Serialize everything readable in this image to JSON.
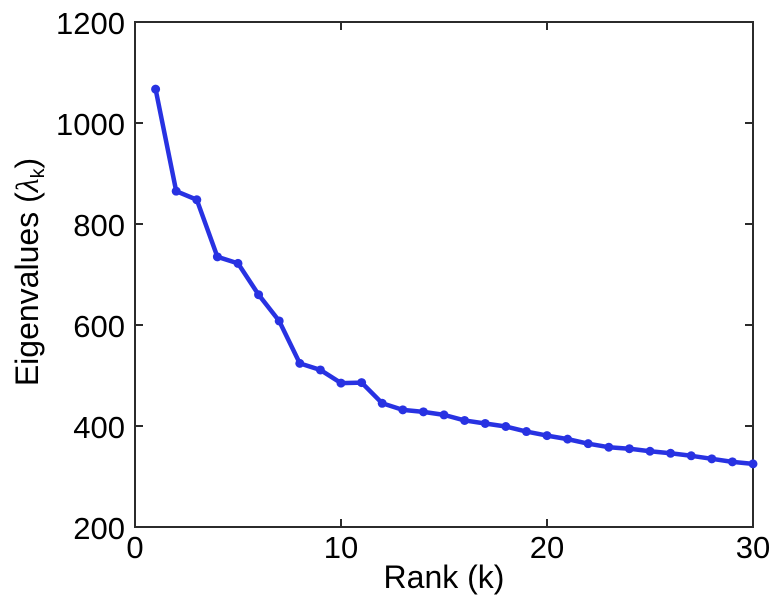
{
  "chart_data": {
    "type": "line",
    "title": "",
    "xlabel": "Rank (k)",
    "ylabel": "Eigenvalues (λk)",
    "ylabel_parts": {
      "prefix": "Eigenvalues (",
      "lambda": "λ",
      "sub": "k",
      "suffix": ")"
    },
    "x": [
      1,
      2,
      3,
      4,
      5,
      6,
      7,
      8,
      9,
      10,
      11,
      12,
      13,
      14,
      15,
      16,
      17,
      18,
      19,
      20,
      21,
      22,
      23,
      24,
      25,
      26,
      27,
      28,
      29,
      30
    ],
    "series": [
      {
        "name": "eigenvalues",
        "values": [
          1067,
          865,
          848,
          735,
          722,
          660,
          608,
          524,
          511,
          485,
          486,
          445,
          432,
          428,
          422,
          411,
          405,
          399,
          389,
          381,
          374,
          365,
          358,
          355,
          350,
          346,
          341,
          335,
          329,
          325
        ]
      }
    ],
    "xlim": [
      0,
      30
    ],
    "ylim": [
      200,
      1200
    ],
    "xticks": [
      0,
      10,
      20,
      30
    ],
    "yticks": [
      200,
      400,
      600,
      800,
      1000,
      1200
    ],
    "grid": false,
    "legend_position": "none",
    "line_color": "#2832E2",
    "marker": "filled-circle",
    "marker_radius": 4.5,
    "line_width": 4.5,
    "axis_color": "#2b2b2b",
    "background_color": "#ffffff",
    "text_color": "#000000"
  }
}
